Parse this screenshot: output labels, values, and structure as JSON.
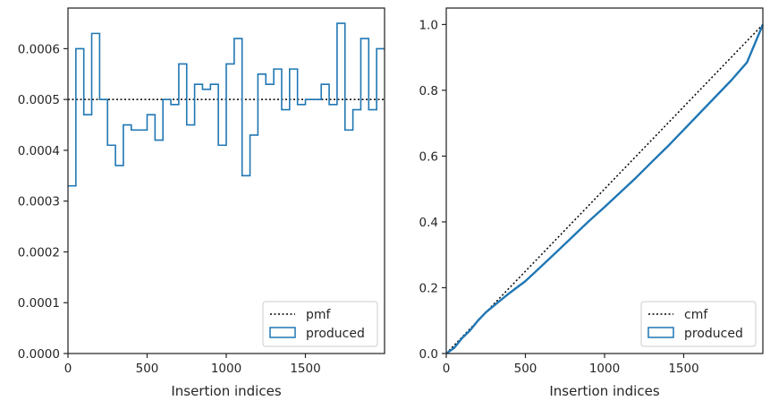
{
  "chart_data": [
    {
      "type": "step-histogram",
      "xlabel": "Insertion indices",
      "ylabel": "",
      "xlim": [
        0,
        2000
      ],
      "ylim": [
        0,
        0.00068
      ],
      "xticks": [
        0,
        500,
        1000,
        1500
      ],
      "xtick_labels": [
        "0",
        "500",
        "1000",
        "1500"
      ],
      "yticks": [
        0,
        0.0001,
        0.0002,
        0.0003,
        0.0004,
        0.0005,
        0.0006
      ],
      "ytick_labels": [
        "0.0000",
        "0.0001",
        "0.0002",
        "0.0003",
        "0.0004",
        "0.0005",
        "0.0006"
      ],
      "legend_position": "lower-right",
      "series": [
        {
          "name": "pmf",
          "style": "dotted",
          "color": "#000000",
          "y": 0.0005
        },
        {
          "name": "produced",
          "style": "step",
          "color": "#1f77b4",
          "bin_width": 50,
          "values": [
            0.00033,
            0.0006,
            0.00047,
            0.00063,
            0.0005,
            0.00041,
            0.00037,
            0.00045,
            0.00044,
            0.00044,
            0.00047,
            0.00042,
            0.0005,
            0.00049,
            0.00057,
            0.00045,
            0.00053,
            0.00052,
            0.00053,
            0.00041,
            0.00057,
            0.00062,
            0.00035,
            0.00043,
            0.00055,
            0.00053,
            0.00056,
            0.00048,
            0.00056,
            0.00049,
            0.0005,
            0.0005,
            0.00053,
            0.00049,
            0.00065,
            0.00044,
            0.00048,
            0.00062,
            0.00048,
            0.0006
          ]
        }
      ]
    },
    {
      "type": "line",
      "xlabel": "Insertion indices",
      "ylabel": "",
      "xlim": [
        0,
        2000
      ],
      "ylim": [
        0,
        1.05
      ],
      "xticks": [
        0,
        500,
        1000,
        1500
      ],
      "xtick_labels": [
        "0",
        "500",
        "1000",
        "1500"
      ],
      "yticks": [
        0,
        0.2,
        0.4,
        0.6,
        0.8,
        1.0
      ],
      "ytick_labels": [
        "0.0",
        "0.2",
        "0.4",
        "0.6",
        "0.8",
        "1.0"
      ],
      "legend_position": "lower-right",
      "series": [
        {
          "name": "cmf",
          "style": "dotted",
          "color": "#000000",
          "x": [
            0,
            2000
          ],
          "y": [
            0,
            1.0
          ]
        },
        {
          "name": "produced",
          "style": "line",
          "color": "#1f77b4",
          "x": [
            0,
            50,
            100,
            150,
            200,
            250,
            300,
            400,
            500,
            600,
            700,
            800,
            900,
            1000,
            1100,
            1200,
            1300,
            1400,
            1500,
            1600,
            1700,
            1800,
            1900,
            2000
          ],
          "y": [
            0,
            0.017,
            0.047,
            0.07,
            0.1,
            0.125,
            0.145,
            0.184,
            0.22,
            0.265,
            0.31,
            0.356,
            0.402,
            0.445,
            0.49,
            0.535,
            0.583,
            0.63,
            0.68,
            0.73,
            0.78,
            0.83,
            0.885,
            1.0
          ]
        }
      ]
    }
  ]
}
